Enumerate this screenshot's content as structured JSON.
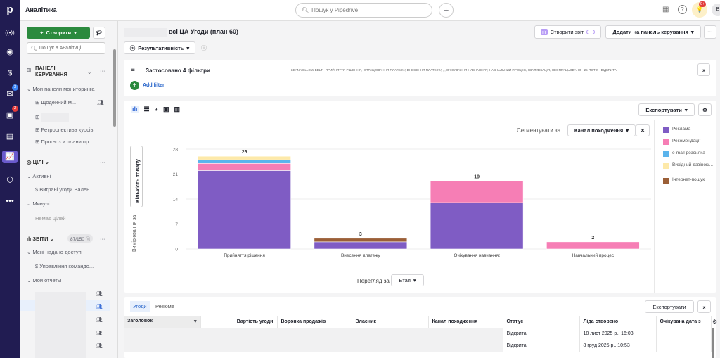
{
  "app": {
    "title": "Аналітика",
    "search_placeholder": "Пошук у Pipedrive",
    "notif_badge": "9+",
    "avatar": "B"
  },
  "rail": {
    "badges": {
      "mail": "3",
      "calendar": "2"
    }
  },
  "sidebar": {
    "create": "Створити",
    "search_placeholder": "Пошук в Аналітиці",
    "dashboards": {
      "title": "ПАНЕЛІ КЕРУВАННЯ",
      "group": "Мои панели мониторинга",
      "items": [
        "Щоденний м...",
        "",
        "Ретроспектива курсів",
        "Прогноз и плани пр..."
      ]
    },
    "goals": {
      "title": "ЦІЛІ",
      "active": "Активні",
      "active_items": [
        "Виграні угоди Вален..."
      ],
      "past": "Минулі",
      "empty": "Немає цілей"
    },
    "reports": {
      "title": "ЗВІТИ",
      "count": "87/150",
      "shared": "Мені надано доступ",
      "shared_items": [
        "Управління командо..."
      ],
      "mine": "Мои отчеты"
    }
  },
  "report": {
    "title": "всі ЦА Угоди (план 60)",
    "view": "Результативність",
    "create_report": "Створити звіт",
    "add_dashboard": "Додати на панель керування",
    "filters": {
      "label": "Застосовано 4 фільтри",
      "summary": "LEAN YELLOW BELT · ПРИЙНЯТТЯ РІШЕННЯ, ОПРАЦЮВАННЯ ПЛАТЕЖУ, ВНЕСЕННЯ ПЛАТЕЖУ, , , ОЧІКУВАННЯ НАВЧАННЯТ, НАВЧАЛЬНИЙ ПРОЦЕС, КВАЛІФІКАЦІЯ, НЕОПРАЦЬОВАНО · 25 ПОТІК · ВІДКРИТА",
      "add": "Add filter"
    },
    "export": "Експортувати",
    "segment_label": "Сегментувати за",
    "segment_value": "Канал походження",
    "view_by_label": "Перегляд за",
    "view_by_value": "Етап",
    "measure_label": "Вимірювання за",
    "measure_value": "Кількість товару"
  },
  "chart_data": {
    "type": "bar",
    "stacked": true,
    "categories": [
      "Прийняття рішення",
      "Внесення платежу",
      "Очікування навчанняt",
      "Навчальний процес"
    ],
    "ylim": [
      0,
      28
    ],
    "yticks": [
      0,
      7,
      14,
      21,
      28
    ],
    "ylabel": "Кількість товару",
    "xlabel": "Етап",
    "grid": true,
    "legend": "right",
    "totals": [
      26,
      3,
      19,
      2
    ],
    "series": [
      {
        "name": "Реклама",
        "color": "#7f5cc4",
        "values": [
          22,
          2,
          13,
          0
        ]
      },
      {
        "name": "Рекомендації",
        "color": "#f67eb5",
        "values": [
          2,
          0,
          6,
          2
        ]
      },
      {
        "name": "e-mail розсилка",
        "color": "#5bb4ec",
        "values": [
          1,
          0,
          0,
          0
        ]
      },
      {
        "name": "Вихідний дзвінок/...",
        "color": "#fde9a9",
        "values": [
          1,
          0,
          0,
          0
        ]
      },
      {
        "name": "Інтернет-пошук",
        "color": "#9b5f37",
        "values": [
          0,
          1,
          0,
          0
        ]
      }
    ]
  },
  "table": {
    "tabs": [
      "Угоди",
      "Резюме"
    ],
    "export": "Експортувати",
    "columns": [
      "Заголовок",
      "Вартість угоди",
      "Воронка продажів",
      "Власник",
      "Канал походження",
      "Статус",
      "Ліда створено",
      "Очікувана дата з"
    ],
    "rows": [
      {
        "status": "Відкрита",
        "created": "18 лист 2025 р., 16:03"
      },
      {
        "status": "Відкрита",
        "created": "8 груд 2025 р., 10:53"
      }
    ]
  }
}
